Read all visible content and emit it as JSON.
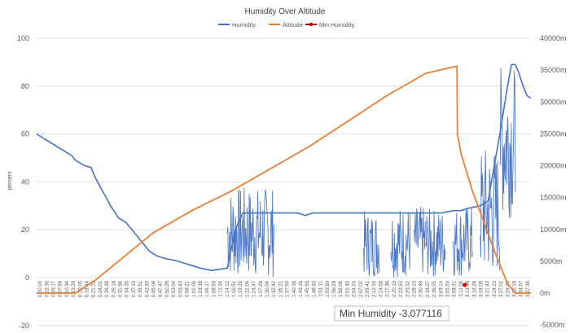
{
  "chart_data": {
    "type": "line",
    "title": "Humidity Over Altitude",
    "ylabel": "percent",
    "y2label": "",
    "ylim": [
      -20,
      100
    ],
    "y2lim": [
      -5000,
      40000
    ],
    "yticks": [
      -20,
      0,
      20,
      40,
      60,
      80,
      100
    ],
    "y2ticks": [
      "-5000m",
      "0m",
      "5000m",
      "10000m",
      "15000m",
      "20000m",
      "25000m",
      "30000m",
      "35000m",
      "40000m"
    ],
    "y2tick_values": [
      -5000,
      0,
      5000,
      10000,
      15000,
      20000,
      25000,
      30000,
      35000,
      40000
    ],
    "x_labels": [
      "0:00:00",
      "0:02:39",
      "0:05:17",
      "0:07:56",
      "0:10:34",
      "0:13:26",
      "0:16:05",
      "0:18:44",
      "0:21:22",
      "0:24:01",
      "0:26:38",
      "0:29:18",
      "0:31:56",
      "0:34:35",
      "0:37:13",
      "0:39:51",
      "0:42:30",
      "0:45:08",
      "0:47:47",
      "0:50:26",
      "0:53:04",
      "0:55:43",
      "0:58:21",
      "1:01:00",
      "1:03:38",
      "1:06:17",
      "1:08:55",
      "1:11:34",
      "1:14:12",
      "1:16:51",
      "1:19:29",
      "1:22:09",
      "1:24:47",
      "1:27:26",
      "1:30:04",
      "1:32:42",
      "1:35:21",
      "1:37:59",
      "1:40:38",
      "1:43:16",
      "1:45:55",
      "1:48:33",
      "1:51:11",
      "1:53:50",
      "1:56:28",
      "1:59:06",
      "2:01:45",
      "2:04:24",
      "2:07:02",
      "2:09:41",
      "2:12:19",
      "2:14:58",
      "2:17:36",
      "2:20:15",
      "2:22:53",
      "2:25:32",
      "2:28:10",
      "2:30:48",
      "2:33:27",
      "2:36:05",
      "3:03:14",
      "3:05:53",
      "3:08:31",
      "3:11:09",
      "3:13:48",
      "3:16:26",
      "3:19:05",
      "3:21:43",
      "3:24:23",
      "3:27:01",
      "3:29:40",
      "3:32:18",
      "3:34:57",
      "3:37:38"
    ],
    "series": [
      {
        "name": "Humidity",
        "color": "#4472C4",
        "points": [
          [
            0,
            60
          ],
          [
            0.01,
            59
          ],
          [
            0.03,
            57
          ],
          [
            0.05,
            55
          ],
          [
            0.07,
            53
          ],
          [
            0.09,
            51
          ],
          [
            0.1,
            49
          ],
          [
            0.12,
            47
          ],
          [
            0.14,
            46
          ],
          [
            0.15,
            42
          ],
          [
            0.17,
            36
          ],
          [
            0.19,
            30
          ],
          [
            0.21,
            25
          ],
          [
            0.23,
            23
          ],
          [
            0.25,
            19
          ],
          [
            0.27,
            15
          ],
          [
            0.29,
            11
          ],
          [
            0.31,
            9
          ],
          [
            0.33,
            8
          ],
          [
            0.36,
            7
          ],
          [
            0.38,
            6
          ],
          [
            0.4,
            5
          ],
          [
            0.42,
            4
          ],
          [
            0.45,
            3
          ],
          [
            0.47,
            3.5
          ],
          [
            0.49,
            4
          ],
          [
            0.51,
            20
          ],
          [
            0.53,
            27
          ],
          [
            0.57,
            27
          ],
          [
            0.61,
            27
          ],
          [
            0.65,
            27
          ],
          [
            0.67,
            27
          ],
          [
            0.69,
            26
          ],
          [
            0.71,
            27
          ],
          [
            0.73,
            27
          ],
          [
            0.77,
            27
          ],
          [
            0.81,
            27
          ],
          [
            0.85,
            27
          ],
          [
            0.89,
            27
          ],
          [
            0.92,
            27
          ],
          [
            0.95,
            27
          ],
          [
            0.98,
            27
          ],
          [
            1.01,
            27
          ],
          [
            1.04,
            27
          ],
          [
            1.07,
            28
          ],
          [
            1.09,
            28
          ],
          [
            1.11,
            29
          ],
          [
            1.14,
            30
          ],
          [
            1.16,
            32
          ],
          [
            1.19,
            60
          ],
          [
            1.21,
            80
          ],
          [
            1.22,
            89
          ],
          [
            1.23,
            89
          ],
          [
            1.24,
            85
          ],
          [
            1.25,
            80
          ],
          [
            1.26,
            76
          ],
          [
            1.27,
            75
          ]
        ],
        "noise_bands": [
          [
            0.49,
            0.61,
            0,
            38
          ],
          [
            0.84,
            0.88,
            0,
            28
          ],
          [
            0.91,
            0.96,
            0,
            30
          ],
          [
            0.97,
            1.0,
            0,
            30
          ],
          [
            1.0,
            1.05,
            0,
            29
          ],
          [
            1.07,
            1.12,
            0,
            30
          ],
          [
            1.14,
            1.19,
            0,
            55
          ],
          [
            1.19,
            1.23,
            25,
            89
          ]
        ]
      },
      {
        "name": "Altitude",
        "color": "#ED7D31",
        "axis": "right",
        "points": [
          [
            0,
            0
          ],
          [
            0.1,
            0
          ],
          [
            0.15,
            2000
          ],
          [
            0.2,
            4500
          ],
          [
            0.3,
            9500
          ],
          [
            0.4,
            13000
          ],
          [
            0.5,
            16000
          ],
          [
            0.6,
            19500
          ],
          [
            0.7,
            23000
          ],
          [
            0.8,
            27000
          ],
          [
            0.9,
            31000
          ],
          [
            1.0,
            34500
          ],
          [
            1.07,
            35500
          ],
          [
            1.08,
            35600
          ],
          [
            1.081,
            25000
          ],
          [
            1.09,
            22000
          ],
          [
            1.12,
            16000
          ],
          [
            1.15,
            11000
          ],
          [
            1.18,
            6000
          ],
          [
            1.21,
            1500
          ],
          [
            1.23,
            0
          ],
          [
            1.27,
            0
          ]
        ]
      },
      {
        "name": "Min Humidity",
        "color": "#C00000",
        "marker": true,
        "points": [
          [
            1.1,
            -3.077116
          ]
        ]
      }
    ],
    "callout": "Min Humidity -3,077116",
    "grid": true,
    "legend": "top"
  }
}
